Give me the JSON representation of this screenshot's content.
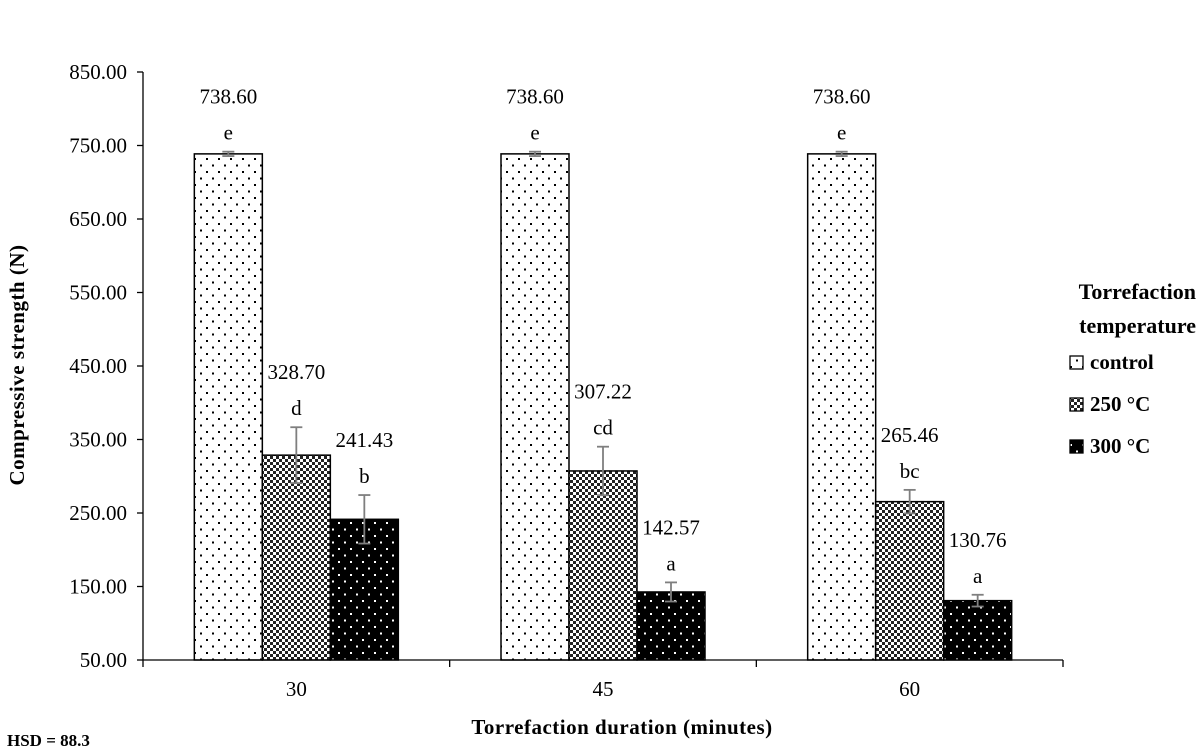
{
  "chart_data": {
    "type": "bar",
    "title": "",
    "xlabel": "Torrefaction duration (minutes)",
    "ylabel": "Compressive strength (N)",
    "categories": [
      "30",
      "45",
      "60"
    ],
    "ylim": [
      50,
      850
    ],
    "yticks": [
      "50.00",
      "150.00",
      "250.00",
      "350.00",
      "450.00",
      "550.00",
      "650.00",
      "750.00",
      "850.00"
    ],
    "grid": false,
    "legend": {
      "title_lines": [
        "Torrefaction",
        "temperature"
      ],
      "placement": "right"
    },
    "series": [
      {
        "name": "control",
        "pattern": "dots",
        "values": [
          738.6,
          738.6,
          738.6
        ],
        "value_labels": [
          "738.60",
          "738.60",
          "738.60"
        ],
        "letters": [
          "e",
          "e",
          "e"
        ],
        "errors": [
          3,
          3,
          3
        ]
      },
      {
        "name": "250 °C",
        "pattern": "checker",
        "values": [
          328.7,
          307.22,
          265.46
        ],
        "value_labels": [
          "328.70",
          "307.22",
          "265.46"
        ],
        "letters": [
          "d",
          "cd",
          "bc"
        ],
        "errors": [
          38,
          33,
          16
        ]
      },
      {
        "name": "300 °C",
        "pattern": "dark-dots",
        "values": [
          241.43,
          142.57,
          130.76
        ],
        "value_labels": [
          "241.43",
          "142.57",
          "130.76"
        ],
        "letters": [
          "b",
          "a",
          "a"
        ],
        "errors": [
          33,
          13,
          8
        ]
      }
    ],
    "footnote": "HSD = 88.3",
    "colors": {
      "axis": "#000000",
      "error_bar": "#7f7f7f",
      "bar_fill_light": "#ffffff",
      "bar_fill_dark": "#000000"
    }
  }
}
